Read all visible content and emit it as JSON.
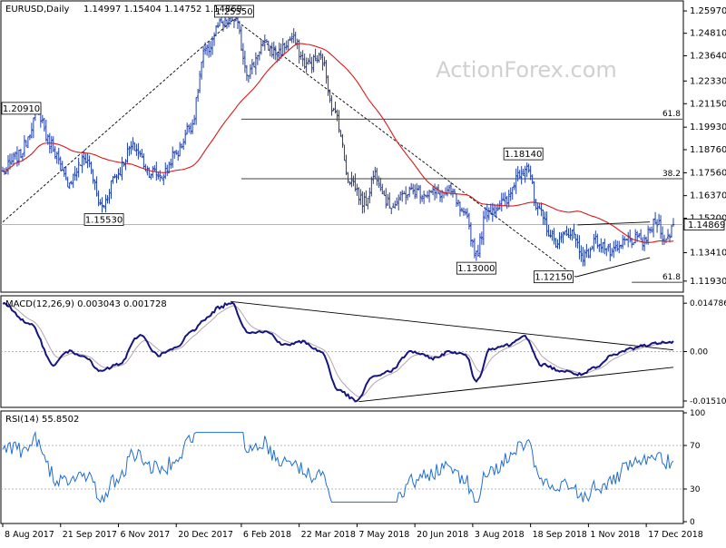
{
  "header": {
    "symbol": "EURUSD,Daily",
    "ohlc": "1.14997 1.15404 1.14752 1.14869"
  },
  "watermark": "ActionForex.com",
  "colors": {
    "bull": "#1f3fa8",
    "bear": "#1f3fa8",
    "ma": "#d61a1a",
    "macd": "#151580",
    "signal": "#b7a3b4",
    "rsi": "#1f6fd0",
    "grid": "#c8c8c8"
  },
  "chart_data": [
    {
      "type": "candlestick",
      "panel": "price",
      "ylim": [
        1.1145,
        1.2635
      ],
      "y_ticks": [
        "1.25970",
        "1.24810",
        "1.23640",
        "1.22330",
        "1.21150",
        "1.19930",
        "1.18760",
        "1.17560",
        "1.16370",
        "1.15200",
        "1.13410",
        "1.11930"
      ],
      "y_tick_values": [
        1.2597,
        1.2481,
        1.2364,
        1.2233,
        1.2115,
        1.1993,
        1.1876,
        1.1756,
        1.1637,
        1.152,
        1.1341,
        1.1193
      ],
      "current_price": "1.14869",
      "current_value": 1.14869,
      "x_ticks": [
        "8 Aug 2017",
        "21 Sep 2017",
        "6 Nov 2017",
        "20 Dec 2017",
        "6 Feb 2018",
        "22 Mar 2018",
        "7 May 2018",
        "20 Jun 2018",
        "3 Aug 2018",
        "18 Sep 2018",
        "1 Nov 2018",
        "17 Dec 2018"
      ],
      "x_tick_index": [
        0,
        32,
        64,
        96,
        132,
        164,
        196,
        228,
        260,
        292,
        324,
        356
      ],
      "n_bars": 372,
      "anchors": [
        [
          0,
          1.176
        ],
        [
          8,
          1.184
        ],
        [
          20,
          1.206
        ],
        [
          26,
          1.191
        ],
        [
          36,
          1.171
        ],
        [
          46,
          1.183
        ],
        [
          55,
          1.158
        ],
        [
          62,
          1.174
        ],
        [
          72,
          1.189
        ],
        [
          82,
          1.176
        ],
        [
          88,
          1.174
        ],
        [
          96,
          1.186
        ],
        [
          104,
          1.2
        ],
        [
          112,
          1.238
        ],
        [
          120,
          1.252
        ],
        [
          128,
          1.2555
        ],
        [
          136,
          1.228
        ],
        [
          144,
          1.242
        ],
        [
          152,
          1.238
        ],
        [
          160,
          1.245
        ],
        [
          168,
          1.232
        ],
        [
          176,
          1.235
        ],
        [
          184,
          1.206
        ],
        [
          192,
          1.172
        ],
        [
          200,
          1.16
        ],
        [
          206,
          1.175
        ],
        [
          214,
          1.159
        ],
        [
          226,
          1.166
        ],
        [
          238,
          1.165
        ],
        [
          248,
          1.165
        ],
        [
          256,
          1.152
        ],
        [
          262,
          1.134
        ],
        [
          268,
          1.156
        ],
        [
          278,
          1.16
        ],
        [
          286,
          1.176
        ],
        [
          290,
          1.18
        ],
        [
          296,
          1.155
        ],
        [
          306,
          1.14
        ],
        [
          314,
          1.145
        ],
        [
          322,
          1.132
        ],
        [
          328,
          1.14
        ],
        [
          338,
          1.134
        ],
        [
          346,
          1.141
        ],
        [
          354,
          1.14
        ],
        [
          362,
          1.15
        ],
        [
          367,
          1.14
        ],
        [
          371,
          1.1487
        ]
      ],
      "ma_period": 55,
      "labels": [
        {
          "text": "1.25550",
          "x": 128,
          "y": 1.2555,
          "pos": "above"
        },
        {
          "text": "1.20910",
          "x": 10,
          "y": 1.2091,
          "pos": "left"
        },
        {
          "text": "1.15530",
          "x": 56,
          "y": 1.1553,
          "pos": "below"
        },
        {
          "text": "1.18140",
          "x": 288,
          "y": 1.1814,
          "pos": "above"
        },
        {
          "text": "1.13000",
          "x": 262,
          "y": 1.13,
          "pos": "below"
        },
        {
          "text": "1.12150",
          "x": 317,
          "y": 1.1215,
          "pos": "left"
        }
      ],
      "fib_lines": [
        {
          "label": "61.8",
          "y": 1.2035,
          "from": 132
        },
        {
          "label": "38.2",
          "y": 1.1725,
          "from": 132
        },
        {
          "label": "61.8",
          "y": 1.1187,
          "from": 348
        }
      ],
      "hline": 1.1487,
      "trend_lines": [
        {
          "from": [
            0,
            1.15
          ],
          "to": [
            128,
            1.2555
          ],
          "style": "dashed"
        },
        {
          "from": [
            128,
            1.2555
          ],
          "to": [
            317,
            1.1215
          ],
          "style": "dashed"
        },
        {
          "from": [
            317,
            1.1215
          ],
          "to": [
            358,
            1.1315
          ],
          "style": "solid"
        },
        {
          "from": [
            318,
            1.1485
          ],
          "to": [
            358,
            1.15
          ],
          "style": "solid"
        }
      ]
    },
    {
      "type": "line",
      "panel": "macd",
      "title": "MACD(12,26,9) 0.003043 0.001728",
      "ylim": [
        -0.0165,
        0.0165
      ],
      "y_ticks": [
        "0.014786",
        "0.00",
        "-0.015107"
      ],
      "y_tick_values": [
        0.014786,
        0,
        -0.015107
      ],
      "current_value": 0.003,
      "anchors": [
        [
          0,
          0.0145
        ],
        [
          16,
          0.008
        ],
        [
          28,
          -0.004
        ],
        [
          36,
          0.0
        ],
        [
          44,
          -0.001
        ],
        [
          54,
          -0.006
        ],
        [
          64,
          -0.004
        ],
        [
          76,
          0.005
        ],
        [
          86,
          -0.001
        ],
        [
          96,
          0.001
        ],
        [
          104,
          0.006
        ],
        [
          112,
          0.01
        ],
        [
          120,
          0.0135
        ],
        [
          126,
          0.015
        ],
        [
          136,
          0.006
        ],
        [
          146,
          0.006
        ],
        [
          156,
          0.002
        ],
        [
          166,
          0.003
        ],
        [
          176,
          0.0
        ],
        [
          186,
          -0.012
        ],
        [
          196,
          -0.0151
        ],
        [
          204,
          -0.008
        ],
        [
          214,
          -0.006
        ],
        [
          226,
          0.0
        ],
        [
          238,
          -0.002
        ],
        [
          248,
          0.0
        ],
        [
          256,
          -0.001
        ],
        [
          262,
          -0.009
        ],
        [
          270,
          0.001
        ],
        [
          280,
          0.002
        ],
        [
          288,
          0.0049
        ],
        [
          298,
          -0.004
        ],
        [
          310,
          -0.006
        ],
        [
          320,
          -0.007
        ],
        [
          328,
          -0.005
        ],
        [
          338,
          -0.001
        ],
        [
          348,
          0.001
        ],
        [
          356,
          0.002
        ],
        [
          366,
          0.003
        ],
        [
          371,
          0.003
        ]
      ],
      "series": [
        {
          "name": "MACD",
          "values": "computed"
        },
        {
          "name": "Signal",
          "values": "computed"
        }
      ],
      "trend_lines": [
        {
          "from": [
            126,
            0.0153
          ],
          "to": [
            371,
            0.0005
          ]
        },
        {
          "from": [
            197,
            -0.0153
          ],
          "to": [
            371,
            -0.0048
          ]
        }
      ]
    },
    {
      "type": "line",
      "panel": "rsi",
      "title": "RSI(14) 55.8502",
      "ylim": [
        0,
        100
      ],
      "y_ticks": [
        "100",
        "70",
        "30",
        "0"
      ],
      "y_tick_values": [
        100,
        70,
        30,
        0
      ],
      "levels": [
        70,
        30
      ],
      "current_value": 55.85
    }
  ]
}
